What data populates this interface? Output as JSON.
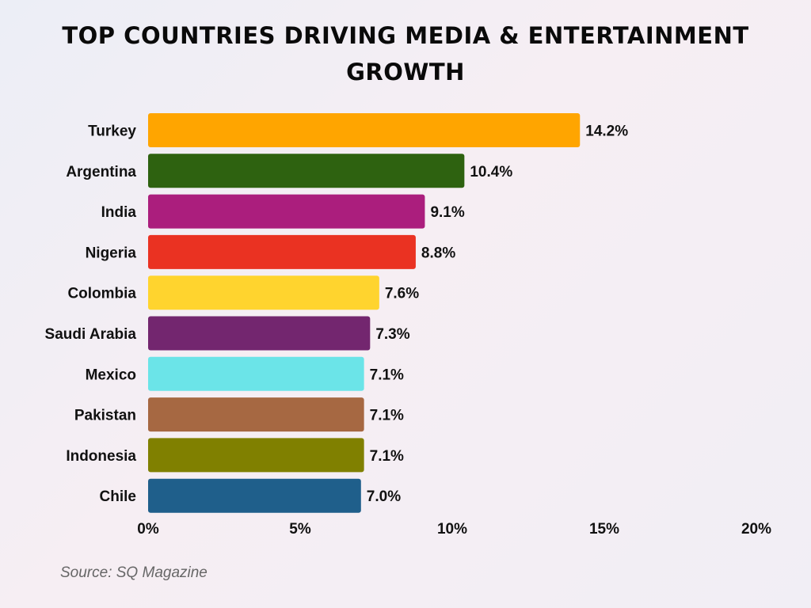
{
  "title": "TOP COUNTRIES DRIVING MEDIA & ENTERTAINMENT GROWTH",
  "source": "Source: SQ Magazine",
  "chart_data": {
    "type": "bar",
    "orientation": "horizontal",
    "title": "TOP COUNTRIES DRIVING MEDIA & ENTERTAINMENT GROWTH",
    "xlabel": "",
    "ylabel": "",
    "xlim": [
      0,
      20
    ],
    "x_ticks": [
      0,
      5,
      10,
      15,
      20
    ],
    "x_tick_labels": [
      "0%",
      "5%",
      "10%",
      "15%",
      "20%"
    ],
    "grid": false,
    "legend": "none",
    "categories": [
      "Turkey",
      "Argentina",
      "India",
      "Nigeria",
      "Colombia",
      "Saudi Arabia",
      "Mexico",
      "Pakistan",
      "Indonesia",
      "Chile"
    ],
    "values": [
      14.2,
      10.4,
      9.1,
      8.8,
      7.6,
      7.3,
      7.1,
      7.1,
      7.1,
      7.0
    ],
    "data_labels": [
      "14.2%",
      "10.4%",
      "9.1%",
      "8.8%",
      "7.6%",
      "7.3%",
      "7.1%",
      "7.1%",
      "7.1%",
      "7.0%"
    ],
    "colors": [
      "#ffa500",
      "#2e6210",
      "#ab1e7d",
      "#ea3222",
      "#ffd42e",
      "#73266f",
      "#6be4e8",
      "#a66842",
      "#808000",
      "#1f5f8b"
    ]
  }
}
